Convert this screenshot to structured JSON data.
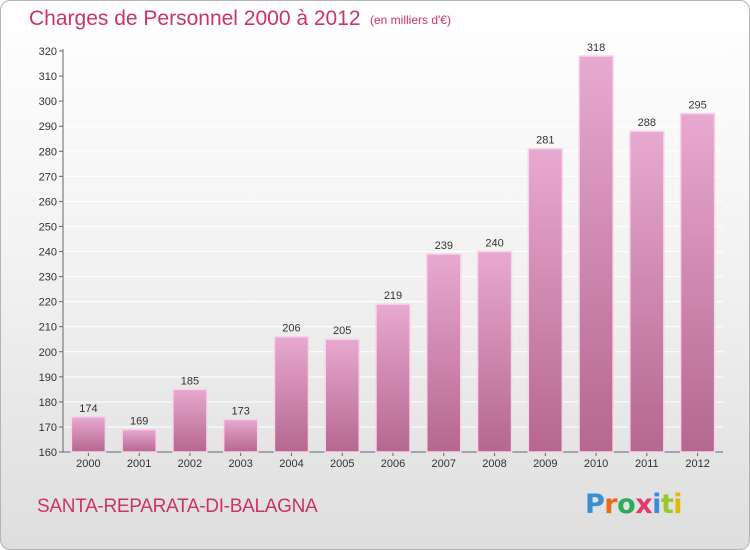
{
  "header": {
    "title": "Charges de Personnel 2000 à 2012",
    "subtitle": "(en milliers d'€)"
  },
  "footer": {
    "commune": "SANTA-REPARATA-DI-BALAGNA",
    "logo_text": "Proxiti",
    "logo_letter_colors": [
      "#3a8ed6",
      "#e86a1e",
      "#2eaa5c",
      "#e23a6e",
      "#3a8ed6",
      "#9ac630",
      "#e6b800"
    ]
  },
  "colors": {
    "title": "#cc3366",
    "bar_fill_top": "#e8a9d0",
    "bar_fill_bottom": "#b5678f",
    "bar_stroke": "#f6d5e8",
    "grid": "#ffffff"
  },
  "chart_data": {
    "type": "bar",
    "categories": [
      "2000",
      "2001",
      "2002",
      "2003",
      "2004",
      "2005",
      "2006",
      "2007",
      "2008",
      "2009",
      "2010",
      "2011",
      "2012"
    ],
    "values": [
      174,
      169,
      185,
      173,
      206,
      205,
      219,
      239,
      240,
      281,
      318,
      288,
      295
    ],
    "ylim": [
      160,
      320
    ],
    "yticks": [
      160,
      170,
      180,
      190,
      200,
      210,
      220,
      230,
      240,
      250,
      260,
      270,
      280,
      290,
      300,
      310,
      320
    ],
    "grid": true,
    "legend": "none"
  }
}
